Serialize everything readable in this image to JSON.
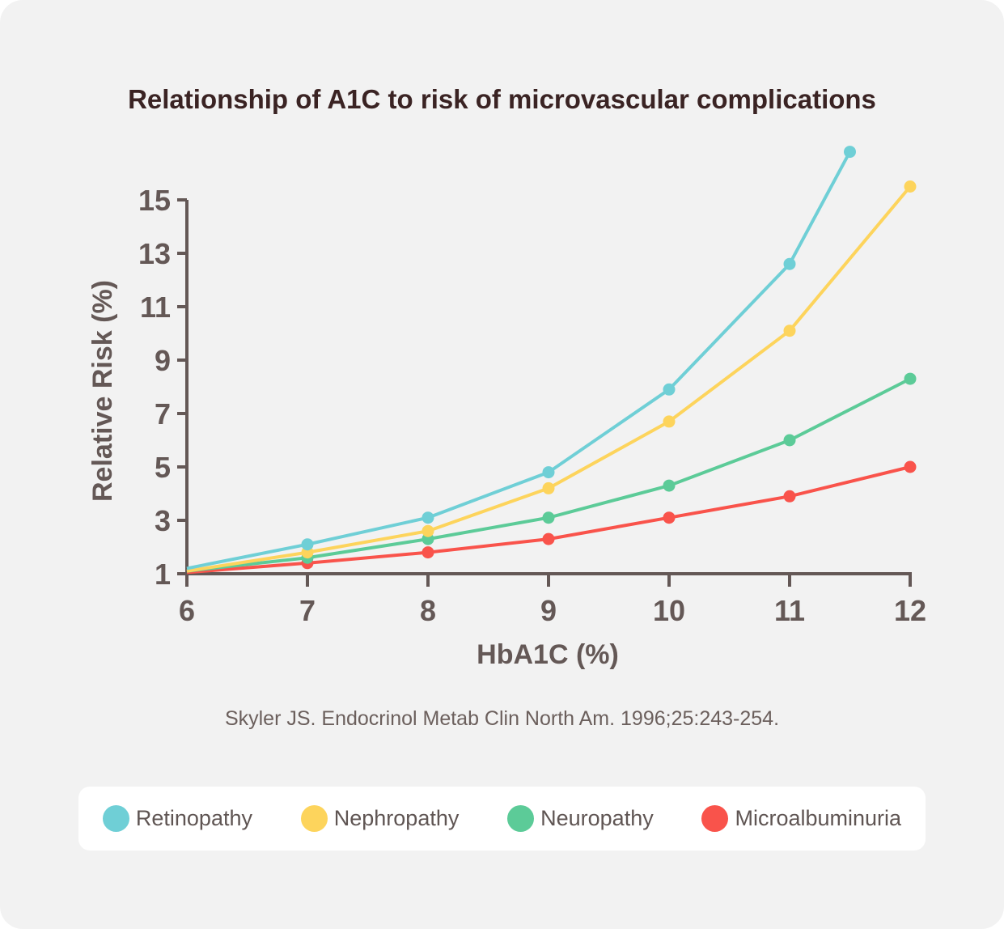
{
  "chart_data": {
    "type": "line",
    "title": "Relationship of A1C to risk of microvascular complications",
    "xlabel": "HbA1C (%)",
    "ylabel": "Relative Risk (%)",
    "xlim": [
      6,
      12
    ],
    "ylim": [
      1,
      15
    ],
    "xticks": [
      "6",
      "7",
      "8",
      "9",
      "10",
      "11",
      "12"
    ],
    "yticks": [
      "1",
      "3",
      "5",
      "7",
      "9",
      "11",
      "13",
      "15"
    ],
    "grid": false,
    "legend_position": "bottom",
    "series": [
      {
        "name": "Retinopathy",
        "color": "#6fcfd6",
        "x": [
          6,
          7,
          8,
          9,
          10,
          11,
          11.5
        ],
        "y": [
          1.2,
          2.1,
          3.1,
          4.8,
          7.9,
          12.6,
          16.8
        ]
      },
      {
        "name": "Nephropathy",
        "color": "#fdd45c",
        "x": [
          6,
          7,
          8,
          9,
          10,
          11,
          12
        ],
        "y": [
          1.1,
          1.8,
          2.6,
          4.2,
          6.7,
          10.1,
          15.5
        ]
      },
      {
        "name": "Neuropathy",
        "color": "#5ccb98",
        "x": [
          6,
          7,
          8,
          9,
          10,
          11,
          12
        ],
        "y": [
          1.1,
          1.6,
          2.3,
          3.1,
          4.3,
          6.0,
          8.3
        ]
      },
      {
        "name": "Microalbuminuria",
        "color": "#f9534b",
        "x": [
          6,
          7,
          8,
          9,
          10,
          11,
          12
        ],
        "y": [
          1.05,
          1.4,
          1.8,
          2.3,
          3.1,
          3.9,
          5.0
        ]
      }
    ]
  },
  "source": "Skyler JS. Endocrinol Metab Clin North Am.  1996;25:243-254."
}
